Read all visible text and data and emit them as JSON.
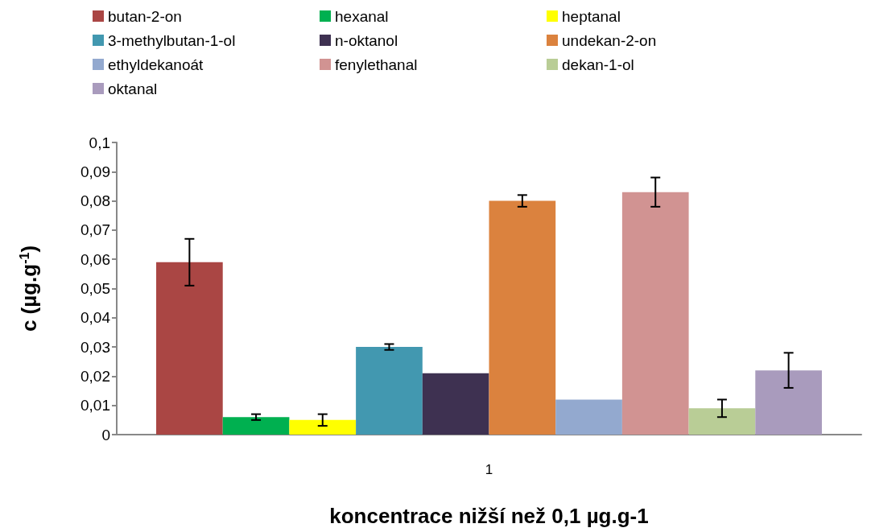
{
  "chart_data": {
    "type": "bar",
    "xlabel": "koncentrace nižší než 0,1 µg.g-1",
    "ylabel": "c (µg.g$^{-1}$)",
    "categories": [
      "1"
    ],
    "series": [
      {
        "name": "butan-2-on",
        "color": "#aa4644",
        "values": [
          0.059
        ],
        "errors": [
          0.008
        ]
      },
      {
        "name": "hexanal",
        "color": "#00b050",
        "values": [
          0.006
        ],
        "errors": [
          0.001
        ]
      },
      {
        "name": "heptanal",
        "color": "#ffff00",
        "values": [
          0.005
        ],
        "errors": [
          0.002
        ]
      },
      {
        "name": "3-methylbutan-1-ol",
        "color": "#4298b0",
        "values": [
          0.03
        ],
        "errors": [
          0.001
        ]
      },
      {
        "name": "n-oktanol",
        "color": "#3e3151",
        "values": [
          0.021
        ]
      },
      {
        "name": "undekan-2-on",
        "color": "#db823e",
        "values": [
          0.08
        ],
        "errors": [
          0.002
        ]
      },
      {
        "name": "ethyldekanoát",
        "color": "#93a9cf",
        "values": [
          0.012
        ]
      },
      {
        "name": "fenylethanal",
        "color": "#d19392",
        "values": [
          0.083
        ],
        "errors": [
          0.005
        ]
      },
      {
        "name": "dekan-1-ol",
        "color": "#b9cd96",
        "values": [
          0.009
        ],
        "errors": [
          0.003
        ]
      },
      {
        "name": "oktanal",
        "color": "#a99bbd",
        "values": [
          0.022
        ],
        "errors": [
          0.006
        ]
      }
    ],
    "ylim": [
      0,
      0.1
    ],
    "yticks": [
      0,
      {
        "value": 0.01,
        "label": "0,01"
      },
      {
        "value": 0.02,
        "label": "0,02"
      },
      {
        "value": 0.03,
        "label": "0,03"
      },
      {
        "value": 0.04,
        "label": "0,04"
      },
      {
        "value": 0.05,
        "label": "0,05"
      },
      {
        "value": 0.06,
        "label": "0,06"
      },
      {
        "value": 0.07,
        "label": "0,07"
      },
      {
        "value": 0.08,
        "label": "0,08"
      },
      {
        "value": 0.09,
        "label": "0,09"
      },
      {
        "value": 0.1,
        "label": "0,1"
      }
    ],
    "grid": false,
    "legend": "top"
  }
}
